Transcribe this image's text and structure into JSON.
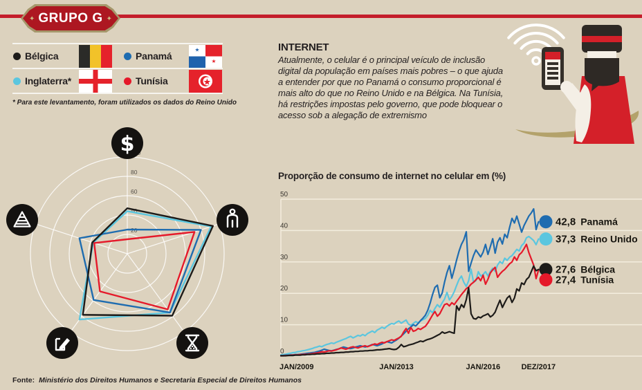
{
  "page": {
    "background": "#dcd2be",
    "accent_red": "#c41e2b"
  },
  "header": {
    "badge_label": "GRUPO G"
  },
  "legend": {
    "items": [
      {
        "name": "Bélgica",
        "dot_color": "#1d1b19",
        "flag": "belgium"
      },
      {
        "name": "Inglaterra*",
        "dot_color": "#5bc6df",
        "flag": "england"
      },
      {
        "name": "Panamá",
        "dot_color": "#1e6cb0",
        "flag": "panama"
      },
      {
        "name": "Tunísia",
        "dot_color": "#e5192a",
        "flag": "tunisia"
      }
    ],
    "footnote": "* Para este levantamento, foram utilizados os dados do Reino Unido"
  },
  "internet": {
    "title": "INTERNET",
    "body": "Atualmente, o celular é o principal veículo de inclusão digital da população em países mais pobres – o que ajuda a entender por que no Panamá o consumo proporcional é mais alto do que no Reino Unido e na Bélgica. Na Tunísia, há restrições impostas pelo governo, que pode bloquear o acesso sob a alegação de extremismo",
    "illustration": "beefeater-with-smartphone-and-wifi"
  },
  "source": {
    "label": "Fonte:",
    "text": "Ministério dos Direitos Humanos e Secretaria Especial de Direitos Humanos"
  },
  "chart_data": [
    {
      "type": "radar",
      "axes": [
        "dollar",
        "person",
        "hourglass",
        "pencil-document",
        "pyramid"
      ],
      "axis_icons": [
        "dollar-icon",
        "person-icon",
        "hourglass-icon",
        "pencil-icon",
        "pyramid-icon"
      ],
      "scale_ticks": [
        20,
        40,
        60,
        80,
        100
      ],
      "max": 100,
      "grid": "circular",
      "series": [
        {
          "name": "Bélgica",
          "color": "#1d1b19",
          "values": [
            47,
            93,
            79,
            78,
            38
          ]
        },
        {
          "name": "Inglaterra (Reino Unido)",
          "color": "#5bc6df",
          "values": [
            44,
            91,
            75,
            84,
            37
          ]
        },
        {
          "name": "Panamá",
          "color": "#1e6cb0",
          "values": [
            25,
            80,
            75,
            59,
            52
          ]
        },
        {
          "name": "Tunísia",
          "color": "#e5192a",
          "values": [
            15,
            73,
            71,
            48,
            36
          ]
        }
      ]
    },
    {
      "type": "line",
      "title": "Proporção de consumo de internet no celular em (%)",
      "x_unit": "month",
      "x_start_label": "JAN/2009",
      "x_tick_labels": [
        "JAN/2009",
        "JAN/2013",
        "JAN/2016",
        "DEZ/2017"
      ],
      "x_tick_months": [
        0,
        48,
        84,
        107
      ],
      "y_ticks": [
        0,
        10,
        20,
        30,
        40,
        50
      ],
      "ylim": [
        0,
        50
      ],
      "grid": "horizontal",
      "legend_position": "end-of-line",
      "series": [
        {
          "name": "Panamá",
          "color": "#1e6cb0",
          "end_label": "42,8",
          "values": [
            0.2,
            0.2,
            0.3,
            0.3,
            0.4,
            0.4,
            0.5,
            0.5,
            0.6,
            0.7,
            0.8,
            0.9,
            1.0,
            1.1,
            1.2,
            1.4,
            1.6,
            1.9,
            2.2,
            2.0,
            1.8,
            1.7,
            1.9,
            2.1,
            2.3,
            2.6,
            2.9,
            2.7,
            2.5,
            2.4,
            2.6,
            2.9,
            3.1,
            3.3,
            3.1,
            2.9,
            3.1,
            3.4,
            3.7,
            3.5,
            3.3,
            3.6,
            3.9,
            4.3,
            4.6,
            4.4,
            4.2,
            4.7,
            5.1,
            5.7,
            6.4,
            7.1,
            7.9,
            8.7,
            9.3,
            10.0,
            9.6,
            10.4,
            11.3,
            12.1,
            13.0,
            14.6,
            16.9,
            19.6,
            21.9,
            22.6,
            18.6,
            20.1,
            23.6,
            26.6,
            28.8,
            24.8,
            27.6,
            30.6,
            33.4,
            35.6,
            37.1,
            39.6,
            27.0,
            29.6,
            32.0,
            33.8,
            32.7,
            31.6,
            33.1,
            35.6,
            32.4,
            34.9,
            37.4,
            32.8,
            36.3,
            37.7,
            35.7,
            38.8,
            37.7,
            41.0,
            43.9,
            42.4,
            44.6,
            42.1,
            39.5,
            41.6,
            43.1,
            44.6,
            45.6,
            46.9,
            40.3,
            42.8
          ]
        },
        {
          "name": "Reino Unido",
          "color": "#5bc6df",
          "end_label": "37,3",
          "values": [
            0.4,
            0.5,
            0.6,
            0.8,
            0.9,
            1.1,
            1.2,
            1.4,
            1.5,
            1.7,
            1.8,
            2.0,
            2.2,
            2.4,
            2.7,
            2.9,
            3.2,
            3.0,
            3.4,
            3.7,
            3.9,
            4.2,
            4.0,
            4.4,
            4.7,
            5.0,
            5.3,
            5.6,
            6.0,
            6.3,
            5.8,
            6.2,
            6.6,
            6.4,
            6.9,
            6.5,
            7.2,
            7.6,
            8.0,
            7.5,
            8.3,
            8.7,
            9.2,
            8.8,
            9.5,
            10.0,
            10.4,
            10.2,
            10.8,
            11.2,
            10.5,
            11.0,
            11.5,
            10.2,
            9.8,
            10.4,
            11.0,
            10.6,
            11.2,
            11.6,
            12.0,
            13.0,
            14.6,
            13.8,
            15.2,
            16.4,
            15.6,
            17.0,
            18.2,
            20.3,
            17.9,
            19.0,
            20.5,
            22.5,
            24.4,
            25.5,
            23.5,
            22.2,
            24.0,
            27.7,
            23.6,
            24.0,
            26.9,
            25.5,
            26.0,
            26.9,
            25.5,
            27.0,
            28.0,
            27.0,
            29.0,
            30.1,
            29.5,
            31.2,
            30.5,
            31.5,
            32.0,
            33.0,
            34.0,
            33.5,
            35.2,
            36.0,
            37.7,
            38.1,
            37.5,
            36.8,
            35.5,
            37.3
          ]
        },
        {
          "name": "Bélgica",
          "color": "#1d1b19",
          "end_label": "27,6",
          "values": [
            0.1,
            0.1,
            0.1,
            0.2,
            0.2,
            0.2,
            0.3,
            0.3,
            0.3,
            0.4,
            0.4,
            0.5,
            0.5,
            0.6,
            0.6,
            0.7,
            0.7,
            0.8,
            0.8,
            0.9,
            0.9,
            1.0,
            1.0,
            1.1,
            1.1,
            1.2,
            1.2,
            1.3,
            1.3,
            1.4,
            1.4,
            1.5,
            1.5,
            1.6,
            1.6,
            1.7,
            1.7,
            1.8,
            1.8,
            1.9,
            2.0,
            2.0,
            2.1,
            2.2,
            2.3,
            2.4,
            2.2,
            2.1,
            2.2,
            2.8,
            3.7,
            3.0,
            3.2,
            3.5,
            3.7,
            3.9,
            4.2,
            4.5,
            4.8,
            4.6,
            5.0,
            5.3,
            5.5,
            5.8,
            6.2,
            6.6,
            7.0,
            7.7,
            7.3,
            7.5,
            7.8,
            7.5,
            7.3,
            16.0,
            14.6,
            16.4,
            15.5,
            18.0,
            21.8,
            13.5,
            12.0,
            11.8,
            12.5,
            12.2,
            12.8,
            13.1,
            13.5,
            12.5,
            13.0,
            14.0,
            16.0,
            17.8,
            15.5,
            17.0,
            18.5,
            19.2,
            17.1,
            18.5,
            21.4,
            20.8,
            23.3,
            22.8,
            24.4,
            25.1,
            26.9,
            28.7,
            27.2,
            27.6
          ]
        },
        {
          "name": "Tunísia",
          "color": "#e5192a",
          "end_label": "27,4",
          "values": [
            0.1,
            0.1,
            0.2,
            0.2,
            0.3,
            0.3,
            0.4,
            0.4,
            0.5,
            0.5,
            0.6,
            0.6,
            0.7,
            0.8,
            0.9,
            1.0,
            1.2,
            1.4,
            1.3,
            1.5,
            1.7,
            1.6,
            1.8,
            2.0,
            2.3,
            2.6,
            2.4,
            2.2,
            2.5,
            2.8,
            3.0,
            2.8,
            2.6,
            2.9,
            3.1,
            3.3,
            3.0,
            3.3,
            3.6,
            3.9,
            3.7,
            4.1,
            4.4,
            4.2,
            4.6,
            4.9,
            5.2,
            5.0,
            5.4,
            5.8,
            6.3,
            7.7,
            8.8,
            7.3,
            9.1,
            7.9,
            8.2,
            8.8,
            8.5,
            9.0,
            9.5,
            10.5,
            11.8,
            13.1,
            14.2,
            12.7,
            13.5,
            15.0,
            16.4,
            16.7,
            16.0,
            17.0,
            16.4,
            17.5,
            18.5,
            19.6,
            20.5,
            21.5,
            22.0,
            22.9,
            23.5,
            24.3,
            25.1,
            24.0,
            25.8,
            22.9,
            24.5,
            26.5,
            27.5,
            28.3,
            25.1,
            26.2,
            27.0,
            27.6,
            28.5,
            29.4,
            30.0,
            31.6,
            30.5,
            32.3,
            33.0,
            34.2,
            35.6,
            33.0,
            31.0,
            29.0,
            24.7,
            27.4
          ]
        }
      ]
    }
  ]
}
